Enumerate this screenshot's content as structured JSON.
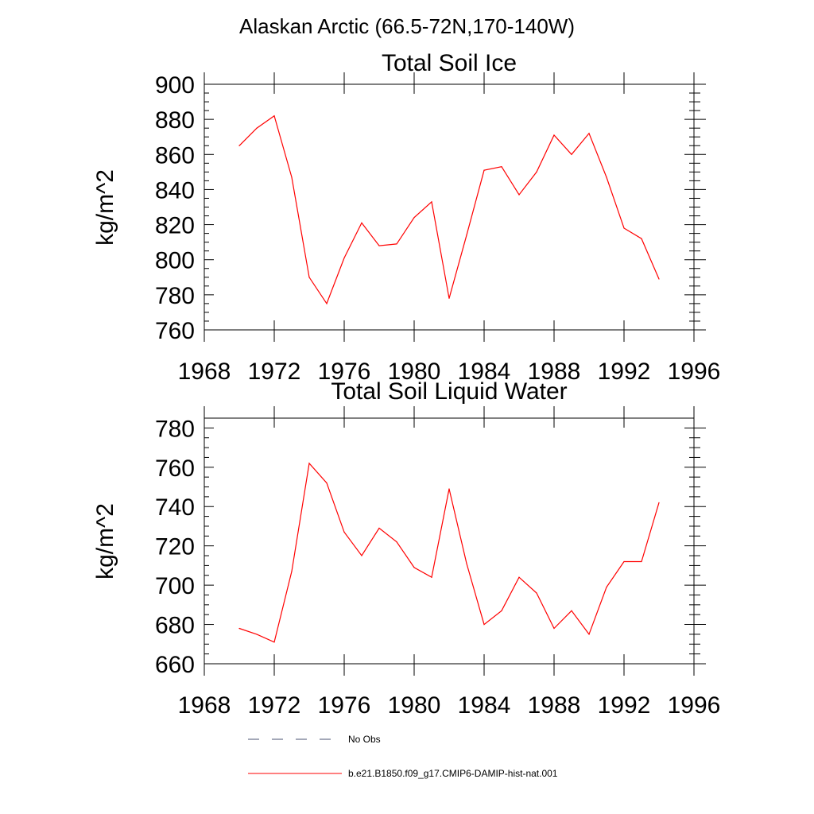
{
  "figure_title": "Alaskan Arctic (66.5-72N,170-140W)",
  "legend": [
    {
      "label": "No Obs",
      "color": "#000000",
      "style": "dashed"
    },
    {
      "label": "b.e21.B1850.f09_g17.CMIP6-DAMIP-hist-nat.001",
      "color": "#ff0000",
      "style": "solid"
    }
  ],
  "chart_data": [
    {
      "type": "line",
      "title": "Total Soil Ice",
      "xlabel": "",
      "ylabel": "kg/m^2",
      "xlim": [
        1968,
        1996
      ],
      "ylim": [
        760,
        900
      ],
      "xticks": [
        1968,
        1972,
        1976,
        1980,
        1984,
        1988,
        1992,
        1996
      ],
      "yticks": [
        760,
        780,
        800,
        820,
        840,
        860,
        880,
        900
      ],
      "grid": false,
      "series": [
        {
          "color": "#ff0000",
          "x": [
            1970,
            1971,
            1972,
            1973,
            1974,
            1975,
            1976,
            1977,
            1978,
            1979,
            1980,
            1981,
            1982,
            1983,
            1984,
            1985,
            1986,
            1987,
            1988,
            1989,
            1990,
            1991,
            1992,
            1993,
            1994
          ],
          "values": [
            865,
            875,
            882,
            847,
            790,
            775,
            801,
            821,
            808,
            809,
            824,
            833,
            778,
            814,
            851,
            853,
            837,
            850,
            871,
            860,
            872,
            847,
            818,
            812,
            789
          ]
        }
      ]
    },
    {
      "type": "line",
      "title": "Total Soil Liquid Water",
      "xlabel": "",
      "ylabel": "kg/m^2",
      "xlim": [
        1968,
        1996
      ],
      "ylim": [
        660,
        785
      ],
      "xticks": [
        1968,
        1972,
        1976,
        1980,
        1984,
        1988,
        1992,
        1996
      ],
      "yticks": [
        660,
        680,
        700,
        720,
        740,
        760,
        780
      ],
      "grid": false,
      "series": [
        {
          "color": "#ff0000",
          "x": [
            1970,
            1971,
            1972,
            1973,
            1974,
            1975,
            1976,
            1977,
            1978,
            1979,
            1980,
            1981,
            1982,
            1983,
            1984,
            1985,
            1986,
            1987,
            1988,
            1989,
            1990,
            1991,
            1992,
            1993,
            1994
          ],
          "values": [
            678,
            675,
            671,
            707,
            762,
            752,
            727,
            715,
            729,
            722,
            709,
            704,
            749,
            711,
            680,
            687,
            704,
            696,
            678,
            687,
            675,
            699,
            712,
            712,
            742
          ]
        }
      ]
    }
  ]
}
